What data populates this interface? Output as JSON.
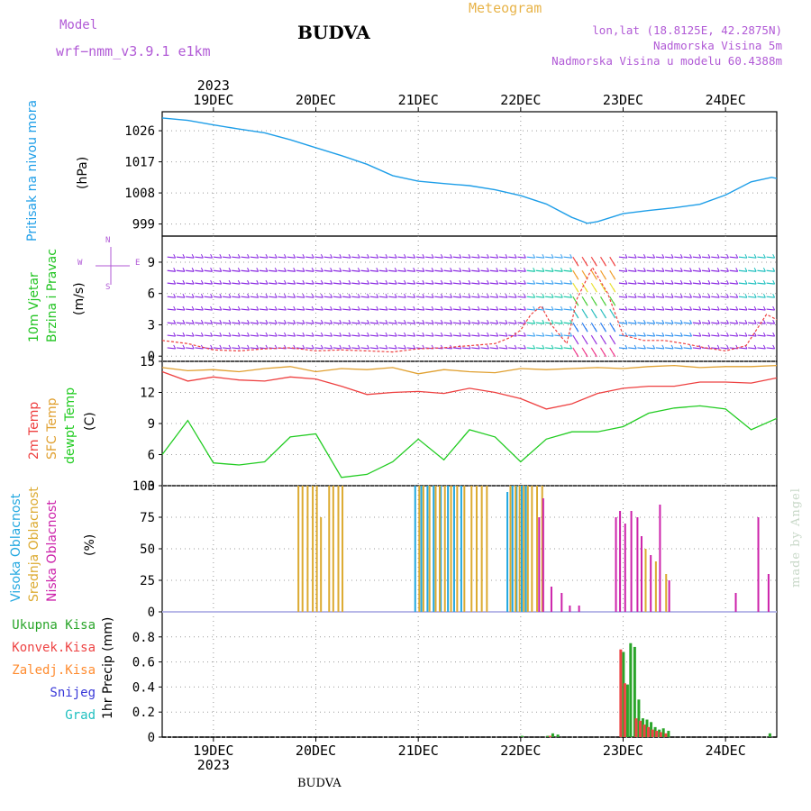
{
  "header": {
    "model_label": "Model",
    "model_version": "wrf−nmm_v3.9.1  e1km",
    "station": "BUDVA",
    "meteogram_label": "Meteogram",
    "coords": "lon,lat (18.8125E, 42.2875N)",
    "altitude": "Nadmorska Visina 5m",
    "model_altitude": "Nadmorska Visina u modelu 60.4388m",
    "station_bottom": "BUDVA",
    "made_by": "made by Angel"
  },
  "colors": {
    "pressure": "#1e9ee8",
    "wind_label": "#22c422",
    "temp_2m": "#ee4040",
    "temp_sfc": "#e0a030",
    "dewpoint": "#22cc22",
    "cloud_high": "#22a8e0",
    "cloud_mid": "#dcaa30",
    "cloud_low": "#cc22aa",
    "precip_total": "#2aa52a",
    "precip_conv": "#ee4444",
    "precip_freezing": "#ff8c30",
    "snow": "#3838d8",
    "hail": "#20c0c0",
    "barb_main": "#8a2be2"
  },
  "chart_data": [
    {
      "type": "line",
      "panel": "pressure",
      "legend": [
        "Pritisak na nivou mora"
      ],
      "ylabel": "(hPa)",
      "ylim": [
        995.5,
        1031.5
      ],
      "yticks": [
        999,
        1008,
        1017,
        1026
      ],
      "xlim": [
        18.5,
        24.5
      ],
      "x": [
        18.5,
        18.75,
        19.0,
        19.25,
        19.5,
        19.75,
        20.0,
        20.25,
        20.5,
        20.75,
        21.0,
        21.25,
        21.5,
        21.75,
        22.0,
        22.25,
        22.5,
        22.65,
        22.75,
        23.0,
        23.25,
        23.5,
        23.75,
        24.0,
        24.25,
        24.45,
        24.5
      ],
      "values": [
        1029.7,
        1029.0,
        1027.7,
        1026.5,
        1025.4,
        1023.4,
        1021.1,
        1018.8,
        1016.3,
        1013.0,
        1011.4,
        1010.7,
        1010.1,
        1008.9,
        1007.2,
        1004.8,
        1000.9,
        999.2,
        999.7,
        1002.0,
        1002.9,
        1003.7,
        1004.7,
        1007.4,
        1011.2,
        1012.5,
        1012.2
      ]
    },
    {
      "type": "line",
      "panel": "wind",
      "legend": [
        "10m Vjetar",
        "Brzina i Pravac"
      ],
      "ylabel": "(m/s)",
      "direction_key": [
        "N",
        "S",
        "W",
        "E"
      ],
      "ylim": [
        -0.5,
        11.5
      ],
      "yticks": [
        0,
        3,
        6,
        9
      ],
      "xlim": [
        18.5,
        24.5
      ],
      "x": [
        18.5,
        18.75,
        19.0,
        19.25,
        19.5,
        19.75,
        20.0,
        20.25,
        20.5,
        20.75,
        21.0,
        21.25,
        21.5,
        21.75,
        21.9,
        22.0,
        22.1,
        22.2,
        22.3,
        22.45,
        22.55,
        22.7,
        22.85,
        23.0,
        23.2,
        23.4,
        23.6,
        23.8,
        24.0,
        24.2,
        24.3,
        24.4,
        24.5
      ],
      "values": [
        1.5,
        1.2,
        0.6,
        0.5,
        0.7,
        0.8,
        0.5,
        0.6,
        0.5,
        0.4,
        0.7,
        0.8,
        1.0,
        1.2,
        1.8,
        2.5,
        4.0,
        4.8,
        3.0,
        1.2,
        5.5,
        8.5,
        6.0,
        2.0,
        1.5,
        1.5,
        1.2,
        0.8,
        0.5,
        1.0,
        2.5,
        4.0,
        3.5
      ]
    },
    {
      "type": "line",
      "panel": "temperature",
      "legend": [
        "2m Temp",
        "SFC Temp",
        "dewpt Temp"
      ],
      "ylabel": "(C)",
      "ylim": [
        3,
        15
      ],
      "yticks": [
        3,
        6,
        9,
        12,
        15
      ],
      "xlim": [
        18.5,
        24.5
      ],
      "x": [
        18.5,
        18.75,
        19.0,
        19.25,
        19.5,
        19.75,
        20.0,
        20.25,
        20.5,
        20.75,
        21.0,
        21.25,
        21.5,
        21.75,
        22.0,
        22.25,
        22.5,
        22.75,
        23.0,
        23.25,
        23.5,
        23.75,
        24.0,
        24.25,
        24.5
      ],
      "series": [
        {
          "name": "2m Temp",
          "values": [
            14.0,
            13.1,
            13.5,
            13.2,
            13.1,
            13.5,
            13.3,
            12.6,
            11.8,
            12.0,
            12.1,
            11.9,
            12.4,
            12.0,
            11.4,
            10.4,
            10.9,
            11.9,
            12.4,
            12.6,
            12.6,
            13.0,
            13.0,
            12.9,
            13.4
          ]
        },
        {
          "name": "SFC Temp",
          "values": [
            14.4,
            14.1,
            14.2,
            14.0,
            14.3,
            14.5,
            14.0,
            14.3,
            14.2,
            14.4,
            13.8,
            14.2,
            14.0,
            13.9,
            14.3,
            14.2,
            14.3,
            14.4,
            14.3,
            14.5,
            14.6,
            14.4,
            14.5,
            14.5,
            14.6
          ]
        },
        {
          "name": "dewpt Temp",
          "values": [
            6.0,
            9.3,
            5.2,
            5.0,
            5.3,
            7.7,
            8.0,
            3.8,
            4.1,
            5.3,
            7.5,
            5.5,
            8.4,
            7.7,
            5.3,
            7.5,
            8.2,
            8.2,
            8.7,
            10.0,
            10.5,
            10.7,
            10.4,
            8.4,
            9.5
          ]
        }
      ]
    },
    {
      "type": "bar",
      "panel": "clouds",
      "legend": [
        "Visoka Oblacnost",
        "Srednja Oblacnost",
        "Niska Oblacnost"
      ],
      "ylabel": "(%)",
      "ylim": [
        0,
        100
      ],
      "yticks": [
        0,
        25,
        50,
        75,
        100
      ],
      "xlim": [
        18.5,
        24.5
      ],
      "series": [
        {
          "name": "Visoka Oblacnost",
          "x": [
            20.97,
            21.03,
            21.09,
            21.15,
            21.22,
            21.29,
            21.35,
            21.42,
            21.87,
            21.92,
            21.96,
            22.01,
            22.05
          ],
          "values": [
            100,
            100,
            100,
            100,
            100,
            100,
            100,
            100,
            95,
            100,
            100,
            100,
            100
          ]
        },
        {
          "name": "Srednja Oblacnost",
          "x": [
            19.83,
            19.87,
            19.92,
            19.97,
            20.01,
            20.05,
            20.13,
            20.17,
            20.22,
            20.26,
            21.01,
            21.05,
            21.11,
            21.17,
            21.21,
            21.26,
            21.32,
            21.38,
            21.45,
            21.52,
            21.57,
            21.62,
            21.67,
            21.9,
            21.95,
            21.99,
            22.03,
            22.07,
            22.11,
            22.16,
            22.21,
            23.22,
            23.32,
            23.42
          ],
          "values": [
            100,
            100,
            100,
            100,
            100,
            75,
            100,
            100,
            100,
            100,
            100,
            100,
            100,
            100,
            100,
            100,
            100,
            100,
            100,
            100,
            100,
            100,
            100,
            100,
            100,
            100,
            100,
            100,
            100,
            100,
            100,
            50,
            40,
            30
          ]
        },
        {
          "name": "Niska Oblacnost",
          "x": [
            22.18,
            22.22,
            22.3,
            22.4,
            22.48,
            22.57,
            22.93,
            22.97,
            23.02,
            23.08,
            23.14,
            23.18,
            23.27,
            23.36,
            23.45,
            24.1,
            24.32,
            24.42
          ],
          "values": [
            75,
            90,
            20,
            15,
            5,
            5,
            75,
            80,
            70,
            80,
            75,
            60,
            45,
            85,
            25,
            15,
            75,
            30
          ]
        }
      ]
    },
    {
      "type": "bar",
      "panel": "precipitation",
      "legend": [
        "Ukupna Kisa",
        "Konvek.Kisa",
        "Zaledj.Kisa",
        "Snijeg",
        "Grad"
      ],
      "ylabel": "1hr Precip (mm)",
      "ylim": [
        0,
        1.0
      ],
      "yticks": [
        0,
        0.2,
        0.4,
        0.6,
        0.8
      ],
      "xlim": [
        18.5,
        24.5
      ],
      "categories": [
        "22.00",
        "22.25",
        "22.30",
        "22.35",
        "22.99",
        "23.03",
        "23.06",
        "23.10",
        "23.14",
        "23.18",
        "23.22",
        "23.26",
        "23.30",
        "23.34",
        "23.38",
        "23.43",
        "24.42"
      ],
      "series": [
        {
          "name": "Ukupna Kisa",
          "values": [
            0.01,
            0.01,
            0.03,
            0.02,
            0.68,
            0.42,
            0.75,
            0.72,
            0.3,
            0.15,
            0.14,
            0.12,
            0.08,
            0.06,
            0.07,
            0.05,
            0.03
          ]
        },
        {
          "name": "Konvek.Kisa",
          "values": [
            0.0,
            0.0,
            0.01,
            0.0,
            0.7,
            0.43,
            0.0,
            0.0,
            0.15,
            0.13,
            0.1,
            0.08,
            0.06,
            0.05,
            0.04,
            0.03,
            0.0
          ]
        }
      ]
    }
  ],
  "x_axis": {
    "year": "2023",
    "tick_labels": [
      "19DEC",
      "20DEC",
      "21DEC",
      "22DEC",
      "23DEC",
      "24DEC"
    ],
    "tick_positions": [
      19,
      20,
      21,
      22,
      23,
      24
    ]
  }
}
